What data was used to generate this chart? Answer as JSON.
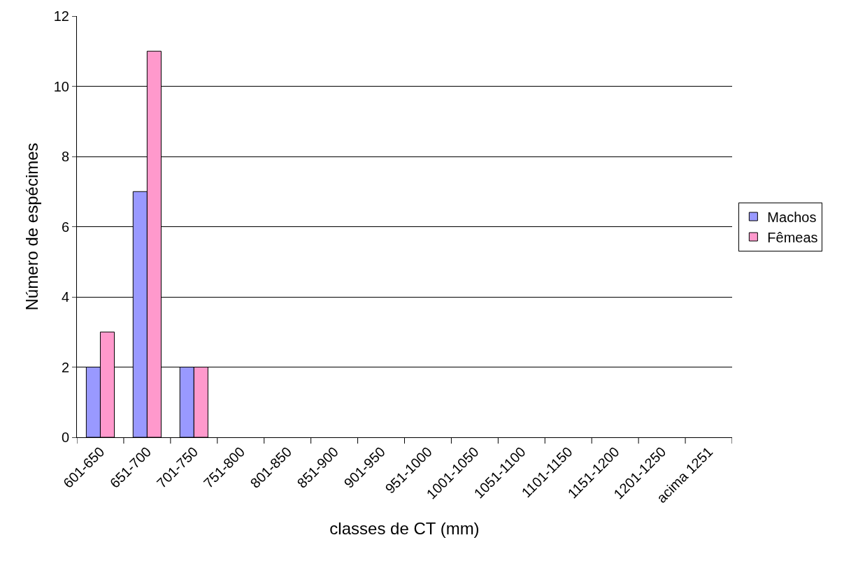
{
  "chart_data": {
    "type": "bar",
    "xlabel": "classes de CT (mm)",
    "ylabel": "Número de espécimes",
    "categories": [
      "601-650",
      "651-700",
      "701-750",
      "751-800",
      "801-850",
      "851-900",
      "901-950",
      "951-1000",
      "1001-1050",
      "1051-1100",
      "1101-1150",
      "1151-1200",
      "1201-1250",
      "acima 1251"
    ],
    "series": [
      {
        "name": "Machos",
        "color": "#9999ff",
        "values": [
          2,
          7,
          2,
          0,
          0,
          0,
          0,
          0,
          0,
          0,
          0,
          0,
          0,
          0
        ]
      },
      {
        "name": "Fêmeas",
        "color": "#ff99cc",
        "values": [
          3,
          11,
          2,
          0,
          0,
          0,
          0,
          0,
          0,
          0,
          0,
          0,
          0,
          0
        ]
      }
    ],
    "ylim": [
      0,
      12
    ],
    "yticks": [
      0,
      2,
      4,
      6,
      8,
      10,
      12
    ],
    "grid": "y",
    "legend": "right"
  }
}
